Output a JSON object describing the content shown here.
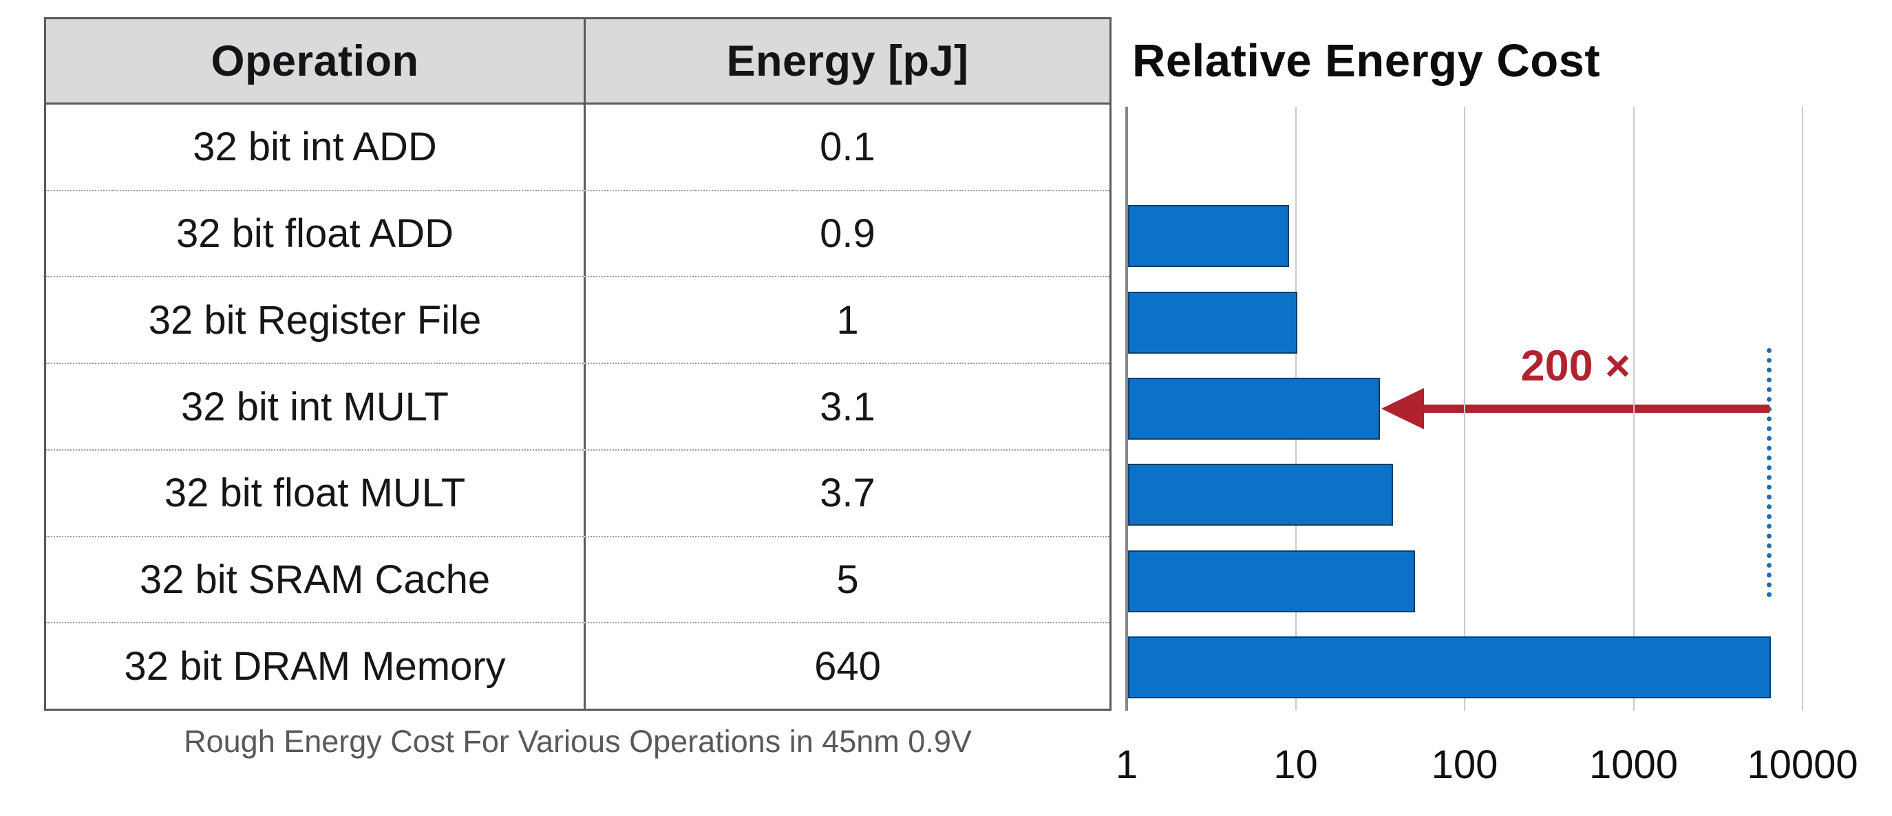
{
  "table": {
    "headers": [
      "Operation",
      "Energy [pJ]"
    ],
    "rows": [
      {
        "operation": "32 bit int ADD",
        "energy": "0.1"
      },
      {
        "operation": "32 bit float ADD",
        "energy": "0.9"
      },
      {
        "operation": "32 bit Register File",
        "energy": "1"
      },
      {
        "operation": "32 bit int MULT",
        "energy": "3.1"
      },
      {
        "operation": "32 bit float MULT",
        "energy": "3.7"
      },
      {
        "operation": "32 bit SRAM Cache",
        "energy": "5"
      },
      {
        "operation": "32 bit DRAM Memory",
        "energy": "640"
      }
    ],
    "caption": "Rough Energy Cost For Various Operations in 45nm 0.9V"
  },
  "chart_data": {
    "type": "bar",
    "orientation": "horizontal",
    "title": "Relative Energy Cost",
    "x_scale": "log",
    "xlim": [
      1,
      10000
    ],
    "x_ticks": [
      1,
      10,
      100,
      1000,
      10000
    ],
    "grid": true,
    "categories": [
      "32 bit int ADD",
      "32 bit float ADD",
      "32 bit Register File",
      "32 bit int MULT",
      "32 bit float MULT",
      "32 bit SRAM Cache",
      "32 bit DRAM Memory"
    ],
    "values": [
      1,
      9,
      10,
      31,
      37,
      50,
      6400
    ],
    "bar_color": "#0b72c8",
    "annotation": {
      "text": "200 ×",
      "color": "#b1222f",
      "from_value": 6400,
      "to_bar_index": 3,
      "reference_line_value": 6400,
      "reference_line_color": "#1e6cb5"
    }
  }
}
